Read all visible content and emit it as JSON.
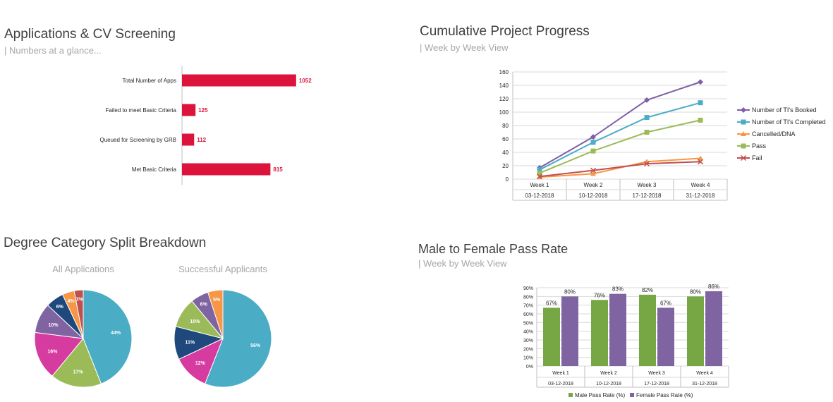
{
  "panels": {
    "apps": {
      "title": "Applications & CV Screening",
      "subtitle": "| Numbers at a glance..."
    },
    "progress": {
      "title": "Cumulative Project Progress",
      "subtitle": "| Week by Week View"
    },
    "degree": {
      "title": "Degree Category Split Breakdown"
    },
    "pass": {
      "title": "Male to Female Pass Rate",
      "subtitle": "| Week by Week View"
    }
  },
  "chart_data": [
    {
      "type": "bar",
      "orientation": "horizontal",
      "categories": [
        "Total Number of Apps",
        "Failed to meet Basic Criteria",
        "Queued for Screening by GRB",
        "Met Basic Criteria"
      ],
      "values": [
        1052,
        125,
        112,
        815
      ],
      "value_labels": [
        "1052",
        "125",
        "112",
        "815"
      ],
      "color": "#dc143c",
      "xlim": [
        0,
        1300
      ]
    },
    {
      "type": "line",
      "categories": [
        "Week 1",
        "Week 2",
        "Week 3",
        "Week 4"
      ],
      "dates": [
        "03-12-2018",
        "10-12-2018",
        "17-12-2018",
        "31-12-2018"
      ],
      "ylim": [
        0,
        160
      ],
      "yticks": [
        "0",
        "20",
        "40",
        "60",
        "80",
        "100",
        "120",
        "140",
        "160"
      ],
      "legend_position": "right",
      "series": [
        {
          "name": "Number of TI's Booked",
          "values": [
            17,
            63,
            118,
            145
          ],
          "color": "#7f5fa8",
          "marker": "diamond"
        },
        {
          "name": "Number of TI's Completed",
          "values": [
            14,
            55,
            92,
            114
          ],
          "color": "#4bacc6",
          "marker": "square"
        },
        {
          "name": "Cancelled/DNA",
          "values": [
            3,
            8,
            26,
            31
          ],
          "color": "#f79646",
          "marker": "triangle"
        },
        {
          "name": "Pass",
          "values": [
            9,
            42,
            70,
            88
          ],
          "color": "#9bbb59",
          "marker": "square"
        },
        {
          "name": "Fail",
          "values": [
            4,
            13,
            23,
            26
          ],
          "color": "#c0504d",
          "marker": "x"
        }
      ]
    },
    {
      "type": "pie",
      "title": "All Applications",
      "values": [
        44,
        17,
        16,
        10,
        6,
        4,
        3
      ],
      "labels": [
        "44%",
        "17%",
        "16%",
        "10%",
        "6%",
        "4%",
        "3%"
      ],
      "colors": [
        "#4bacc6",
        "#9bbb59",
        "#d63ba0",
        "#8064a2",
        "#1f497d",
        "#f79646",
        "#c0504d"
      ]
    },
    {
      "type": "pie",
      "title": "Successful Applicants",
      "values": [
        56,
        12,
        11,
        10,
        6,
        5
      ],
      "labels": [
        "56%",
        "12%",
        "11%",
        "10%",
        "6%",
        "5%"
      ],
      "colors": [
        "#4bacc6",
        "#d63ba0",
        "#1f497d",
        "#9bbb59",
        "#8064a2",
        "#f79646"
      ]
    },
    {
      "type": "bar",
      "categories": [
        "Week 1",
        "Week 2",
        "Week 3",
        "Week 4"
      ],
      "dates": [
        "03-12-2018",
        "10-12-2018",
        "17-12-2018",
        "31-12-2018"
      ],
      "ylim": [
        0,
        90
      ],
      "yticks": [
        "0%",
        "10%",
        "20%",
        "30%",
        "40%",
        "50%",
        "60%",
        "70%",
        "80%",
        "90%"
      ],
      "legend_position": "bottom",
      "series": [
        {
          "name": "Male Pass Rate (%)",
          "values": [
            67,
            76,
            82,
            80
          ],
          "labels": [
            "67%",
            "76%",
            "82%",
            "80%"
          ],
          "color": "#77a645"
        },
        {
          "name": "Female Pass Rate (%)",
          "values": [
            80,
            83,
            67,
            86
          ],
          "labels": [
            "80%",
            "83%",
            "67%",
            "86%"
          ],
          "color": "#8064a2"
        }
      ]
    }
  ]
}
